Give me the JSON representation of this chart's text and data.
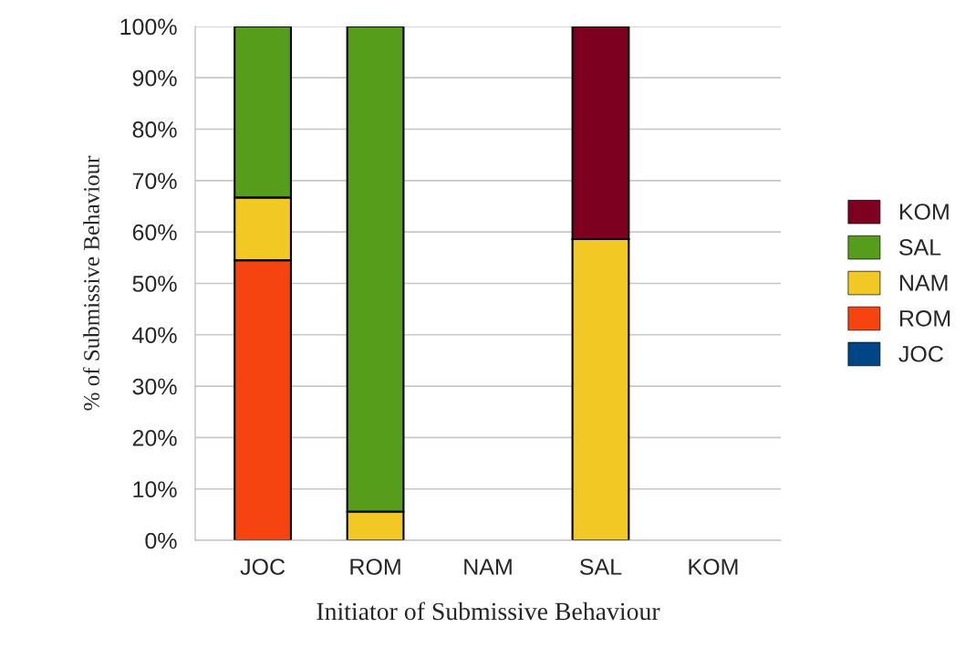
{
  "chart_data": {
    "type": "bar",
    "stacked": true,
    "xlabel": "Initiator of Submissive Behaviour",
    "ylabel": "% of Submissive Behaviour",
    "categories": [
      "JOC",
      "ROM",
      "NAM",
      "SAL",
      "KOM"
    ],
    "series": [
      {
        "name": "JOC",
        "color": "#004586",
        "values": [
          0,
          0,
          0,
          0,
          0
        ]
      },
      {
        "name": "ROM",
        "color": "#f5440f",
        "values": [
          54.5,
          0,
          0,
          0,
          0
        ]
      },
      {
        "name": "NAM",
        "color": "#f2c824",
        "values": [
          12.2,
          5.6,
          0,
          58.6,
          0
        ]
      },
      {
        "name": "SAL",
        "color": "#579d1c",
        "values": [
          33.3,
          94.4,
          0,
          0,
          0
        ]
      },
      {
        "name": "KOM",
        "color": "#7e0021",
        "values": [
          0,
          0,
          0,
          41.4,
          0
        ]
      }
    ],
    "ylim": [
      0,
      100
    ],
    "yticks": [
      {
        "value": 0,
        "label": "0%"
      },
      {
        "value": 10,
        "label": "10%"
      },
      {
        "value": 20,
        "label": "20%"
      },
      {
        "value": 30,
        "label": "30%"
      },
      {
        "value": 40,
        "label": "40%"
      },
      {
        "value": 50,
        "label": "50%"
      },
      {
        "value": 60,
        "label": "60%"
      },
      {
        "value": 70,
        "label": "70%"
      },
      {
        "value": 80,
        "label": "80%"
      },
      {
        "value": 90,
        "label": "90%"
      },
      {
        "value": 100,
        "label": "100%"
      }
    ],
    "grid": "y",
    "legend": "right"
  }
}
